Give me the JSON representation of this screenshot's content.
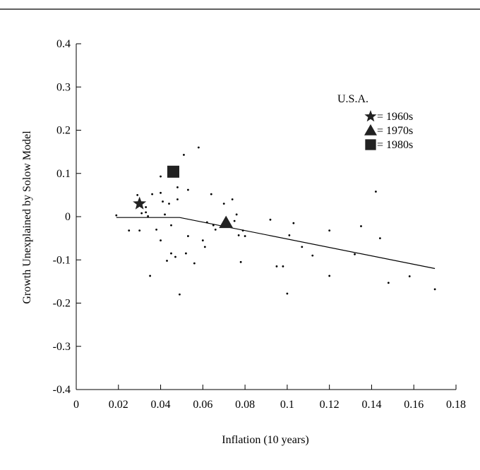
{
  "chart_data": {
    "type": "scatter",
    "xlabel": "Inflation (10 years)",
    "ylabel": "Growth Unexplained by Solow Model",
    "xlim": [
      0,
      0.18
    ],
    "ylim": [
      -0.4,
      0.4
    ],
    "x_ticks": [
      0,
      0.02,
      0.04,
      0.06,
      0.08,
      0.1,
      0.12,
      0.14,
      0.16,
      0.18
    ],
    "x_tick_labels": [
      "0",
      "0.02",
      "0.04",
      "0.06",
      "0.08",
      "0.1",
      "0.12",
      "0.14",
      "0.16",
      "0.18"
    ],
    "y_ticks": [
      0.4,
      0.3,
      0.2,
      0.1,
      0,
      -0.1,
      -0.2,
      -0.3,
      -0.4
    ],
    "y_tick_labels": [
      "0.4",
      "0.3",
      "0.2",
      "0.1",
      "0",
      "-0.1",
      "-0.2",
      "-0.3",
      "-0.4"
    ],
    "grid": false,
    "legend": {
      "title": "U.S.A.",
      "placement": "top-right",
      "entries": [
        {
          "label": "= 1960s",
          "marker": "star"
        },
        {
          "label": "= 1970s",
          "marker": "triangle"
        },
        {
          "label": "= 1980s",
          "marker": "square"
        }
      ]
    },
    "series": [
      {
        "name": "",
        "type": "scatter",
        "points": [
          {
            "x": 0.019,
            "y": 0.003
          },
          {
            "x": 0.025,
            "y": -0.032
          },
          {
            "x": 0.029,
            "y": 0.05
          },
          {
            "x": 0.03,
            "y": -0.032
          },
          {
            "x": 0.031,
            "y": 0.008
          },
          {
            "x": 0.033,
            "y": 0.01
          },
          {
            "x": 0.033,
            "y": 0.022
          },
          {
            "x": 0.034,
            "y": 0.001
          },
          {
            "x": 0.035,
            "y": -0.137
          },
          {
            "x": 0.036,
            "y": 0.052
          },
          {
            "x": 0.038,
            "y": -0.03
          },
          {
            "x": 0.04,
            "y": 0.055
          },
          {
            "x": 0.04,
            "y": -0.055
          },
          {
            "x": 0.04,
            "y": 0.093
          },
          {
            "x": 0.041,
            "y": 0.035
          },
          {
            "x": 0.042,
            "y": 0.005
          },
          {
            "x": 0.043,
            "y": -0.102
          },
          {
            "x": 0.044,
            "y": 0.03
          },
          {
            "x": 0.045,
            "y": -0.085
          },
          {
            "x": 0.045,
            "y": -0.02
          },
          {
            "x": 0.047,
            "y": -0.093
          },
          {
            "x": 0.048,
            "y": 0.068
          },
          {
            "x": 0.048,
            "y": 0.04
          },
          {
            "x": 0.049,
            "y": -0.18
          },
          {
            "x": 0.051,
            "y": 0.143
          },
          {
            "x": 0.052,
            "y": -0.085
          },
          {
            "x": 0.053,
            "y": 0.062
          },
          {
            "x": 0.053,
            "y": -0.045
          },
          {
            "x": 0.056,
            "y": -0.108
          },
          {
            "x": 0.058,
            "y": 0.16
          },
          {
            "x": 0.06,
            "y": -0.055
          },
          {
            "x": 0.061,
            "y": -0.07
          },
          {
            "x": 0.062,
            "y": -0.013
          },
          {
            "x": 0.064,
            "y": 0.052
          },
          {
            "x": 0.065,
            "y": -0.02
          },
          {
            "x": 0.066,
            "y": -0.03
          },
          {
            "x": 0.07,
            "y": 0.03
          },
          {
            "x": 0.074,
            "y": 0.04
          },
          {
            "x": 0.075,
            "y": -0.01
          },
          {
            "x": 0.076,
            "y": 0.005
          },
          {
            "x": 0.077,
            "y": -0.043
          },
          {
            "x": 0.078,
            "y": -0.105
          },
          {
            "x": 0.079,
            "y": -0.032
          },
          {
            "x": 0.08,
            "y": -0.045
          },
          {
            "x": 0.092,
            "y": -0.007
          },
          {
            "x": 0.095,
            "y": -0.115
          },
          {
            "x": 0.098,
            "y": -0.115
          },
          {
            "x": 0.1,
            "y": -0.178
          },
          {
            "x": 0.101,
            "y": -0.043
          },
          {
            "x": 0.103,
            "y": -0.015
          },
          {
            "x": 0.107,
            "y": -0.07
          },
          {
            "x": 0.112,
            "y": -0.09
          },
          {
            "x": 0.12,
            "y": -0.032
          },
          {
            "x": 0.12,
            "y": -0.137
          },
          {
            "x": 0.132,
            "y": -0.087
          },
          {
            "x": 0.135,
            "y": -0.022
          },
          {
            "x": 0.142,
            "y": 0.058
          },
          {
            "x": 0.144,
            "y": -0.05
          },
          {
            "x": 0.148,
            "y": -0.153
          },
          {
            "x": 0.158,
            "y": -0.138
          },
          {
            "x": 0.17,
            "y": -0.168
          }
        ]
      },
      {
        "name": "",
        "type": "line",
        "points": [
          {
            "x": 0.019,
            "y": -0.002
          },
          {
            "x": 0.049,
            "y": -0.002
          },
          {
            "x": 0.17,
            "y": -0.12
          }
        ]
      }
    ],
    "highlights": [
      {
        "label": "1960s",
        "marker": "star",
        "x": 0.03,
        "y": 0.03
      },
      {
        "label": "1970s",
        "marker": "triangle",
        "x": 0.071,
        "y": -0.014
      },
      {
        "label": "1980s",
        "marker": "square",
        "x": 0.046,
        "y": 0.104
      }
    ]
  }
}
